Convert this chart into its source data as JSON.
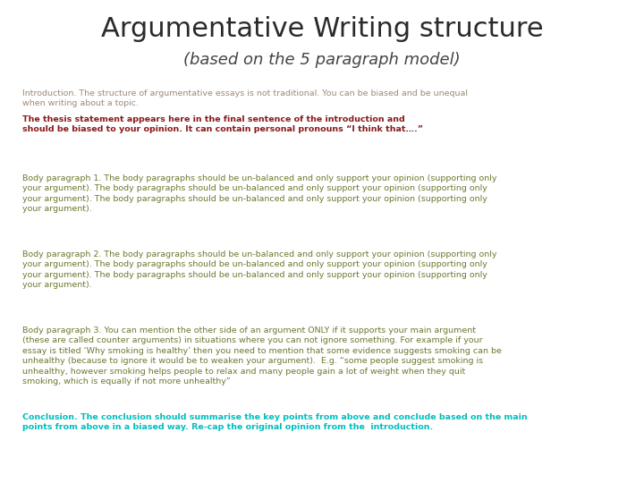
{
  "title": "Argumentative Writing structure",
  "subtitle": "(based on the 5 paragraph model)",
  "bg_color": "#ffffff",
  "title_color": "#2a2a2a",
  "subtitle_color": "#444444",
  "intro_color_normal": "#9B8A78",
  "intro_color_bold": "#8B1A1A",
  "body_color": "#6B7A2F",
  "conclusion_color": "#00BFBF",
  "intro_text_normal": "Introduction. The structure of argumentative essays is not traditional. You can be biased and be unequal\nwhen writing about a topic. ",
  "intro_text_bold": "The thesis statement appears here in the final sentence of the introduction and\nshould be biased to your opinion. It can contain personal pronouns “I think that….”",
  "body1_text": "Body paragraph 1. The body paragraphs should be un-balanced and only support your opinion (supporting only\nyour argument). The body paragraphs should be un-balanced and only support your opinion (supporting only\nyour argument). The body paragraphs should be un-balanced and only support your opinion (supporting only\nyour argument).",
  "body2_text": "Body paragraph 2. The body paragraphs should be un-balanced and only support your opinion (supporting only\nyour argument). The body paragraphs should be un-balanced and only support your opinion (supporting only\nyour argument). The body paragraphs should be un-balanced and only support your opinion (supporting only\nyour argument).",
  "body3_text": "Body paragraph 3. You can mention the other side of an argument ONLY if it supports your main argument\n(these are called counter arguments) in situations where you can not ignore something. For example if your\nessay is titled ‘Why smoking is healthy’ then you need to mention that some evidence suggests smoking can be\nunhealthy (because to ignore it would be to weaken your argument).  E.g. “some people suggest smoking is\nunhealthy, however smoking helps people to relax and many people gain a lot of weight when they quit\nsmoking, which is equally if not more unhealthy”",
  "conclusion_text": "Conclusion. The conclusion should summarise the key points from above and conclude based on the main\npoints from above in a biased way. Re-cap the original opinion from the  introduction.",
  "title_fontsize": 22,
  "subtitle_fontsize": 13,
  "body_fontsize": 6.8,
  "conclusion_fontsize": 6.8
}
